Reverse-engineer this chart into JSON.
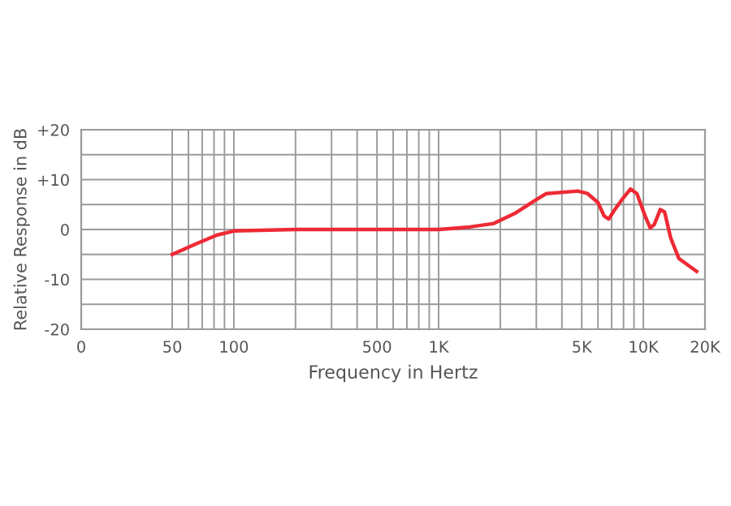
{
  "chart_data": {
    "type": "line",
    "xlabel": "Frequency in Hertz",
    "ylabel": "Relative Response in dB",
    "log": "x",
    "x": [
      50,
      66,
      83,
      100,
      200,
      1000,
      1420,
      1860,
      2350,
      2980,
      3360,
      4780,
      5340,
      6000,
      6430,
      6780,
      7170,
      7830,
      8650,
      9300,
      10200,
      10800,
      11300,
      12100,
      12700,
      13600,
      14900,
      18200
    ],
    "series": [
      {
        "color": "#ee2a35",
        "values": [
          -5,
          -2.8,
          -1.1,
          -0.3,
          0,
          0,
          0.5,
          1.2,
          3.2,
          5.9,
          7.2,
          7.7,
          7.2,
          5.4,
          2.7,
          2.1,
          3.7,
          5.9,
          8.1,
          7.2,
          2.7,
          0.3,
          1.0,
          4.0,
          3.5,
          -1.7,
          -5.8,
          -8.4
        ]
      }
    ],
    "xlim": [
      0,
      20000
    ],
    "xticks": [
      0,
      50,
      100,
      500,
      {
        "value": 1000,
        "label": "1K"
      },
      {
        "value": 5000,
        "label": "5K"
      },
      {
        "value": 10000,
        "label": "10K"
      },
      {
        "value": 20000,
        "label": "20K"
      }
    ],
    "ylim": [
      -20,
      20
    ],
    "yticks": [
      {
        "value": -20,
        "label": "-20"
      },
      {
        "value": -10,
        "label": "-10"
      },
      0,
      {
        "value": 10,
        "label": "+10"
      },
      {
        "value": 20,
        "label": "+20"
      }
    ],
    "grid": true,
    "marker": "none",
    "line_style": "solid",
    "legend": false
  }
}
